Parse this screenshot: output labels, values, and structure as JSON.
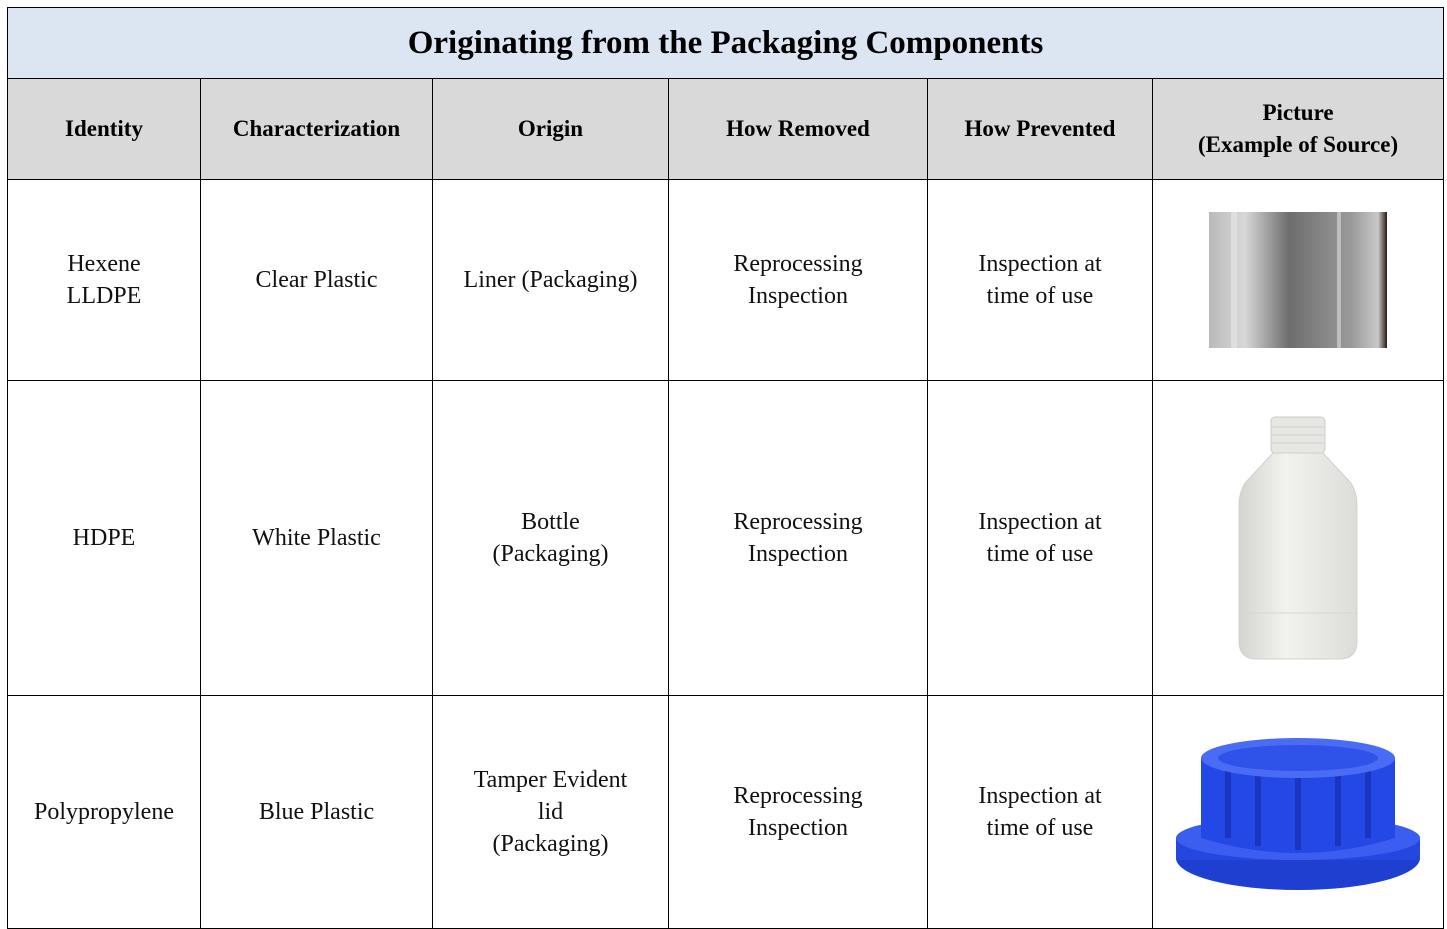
{
  "title": "Originating from the Packaging Components",
  "table": {
    "header": [
      "Identity",
      "Characterization",
      "Origin",
      "How Removed",
      "How Prevented",
      "Picture\n(Example of Source)"
    ],
    "rows": [
      [
        "Hexene\nLLDPE",
        "Clear Plastic",
        "Liner (Packaging)",
        "Reprocessing\nInspection",
        "Inspection at\ntime of use"
      ],
      [
        "HDPE",
        "White Plastic",
        "Bottle\n(Packaging)",
        "Reprocessing\nInspection",
        "Inspection at\ntime of use"
      ],
      [
        "Polypropylene",
        "Blue Plastic",
        "Tamper Evident\nlid\n(Packaging)",
        "Reprocessing\nInspection",
        "Inspection at\ntime of use"
      ]
    ]
  }
}
